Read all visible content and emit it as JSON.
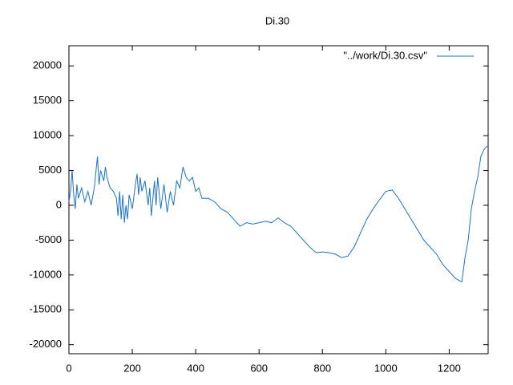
{
  "chart_data": {
    "type": "line",
    "title": "Di.30",
    "x": [
      0,
      5,
      10,
      15,
      20,
      25,
      30,
      40,
      50,
      60,
      70,
      80,
      90,
      95,
      100,
      110,
      115,
      120,
      130,
      140,
      150,
      155,
      160,
      165,
      170,
      175,
      180,
      185,
      190,
      200,
      210,
      215,
      220,
      225,
      230,
      240,
      250,
      255,
      260,
      270,
      275,
      280,
      290,
      300,
      310,
      320,
      330,
      340,
      350,
      360,
      370,
      380,
      390,
      400,
      410,
      420,
      440,
      460,
      480,
      500,
      520,
      540,
      560,
      580,
      600,
      620,
      640,
      660,
      680,
      700,
      720,
      740,
      760,
      780,
      800,
      820,
      840,
      860,
      880,
      900,
      920,
      940,
      960,
      980,
      1000,
      1020,
      1040,
      1060,
      1080,
      1100,
      1120,
      1140,
      1160,
      1180,
      1200,
      1220,
      1240,
      1250,
      1260,
      1270,
      1280,
      1290,
      1300,
      1310,
      1320
    ],
    "series": [
      {
        "name": "\"../work/Di.30.csv\"",
        "color": "#1a73c8",
        "values": [
          500,
          2000,
          5000,
          1500,
          -500,
          3000,
          1000,
          2500,
          500,
          2000,
          0,
          2500,
          7000,
          3000,
          5000,
          3500,
          5500,
          4000,
          2500,
          2000,
          1000,
          -1500,
          2000,
          -2000,
          1500,
          -2500,
          0,
          -2000,
          1500,
          -500,
          3000,
          4500,
          1500,
          4000,
          2000,
          3500,
          0,
          2500,
          -1500,
          3500,
          0,
          4000,
          -500,
          3000,
          -1000,
          2000,
          0,
          3500,
          2500,
          5500,
          4000,
          3500,
          4000,
          2000,
          2500,
          1000,
          1000,
          500,
          -500,
          -1000,
          -2000,
          -3000,
          -2500,
          -2700,
          -2500,
          -2300,
          -2500,
          -1800,
          -2500,
          -3000,
          -4000,
          -5000,
          -6000,
          -6800,
          -6700,
          -6800,
          -7000,
          -7500,
          -7300,
          -6000,
          -4000,
          -2000,
          -500,
          800,
          2000,
          2200,
          1000,
          -500,
          -2000,
          -3500,
          -5000,
          -6000,
          -7000,
          -8500,
          -9500,
          -10500,
          -11000,
          -7500,
          -5000,
          -500,
          2000,
          4000,
          7000,
          8000,
          8500
        ]
      }
    ],
    "xlim": [
      0,
      1323
    ],
    "ylim": [
      -21300,
      22900
    ],
    "xticks": [
      0,
      200,
      400,
      600,
      800,
      1000,
      1200
    ],
    "yticks": [
      -20000,
      -15000,
      -10000,
      -5000,
      0,
      5000,
      10000,
      15000,
      20000
    ],
    "legend": "top-right"
  }
}
